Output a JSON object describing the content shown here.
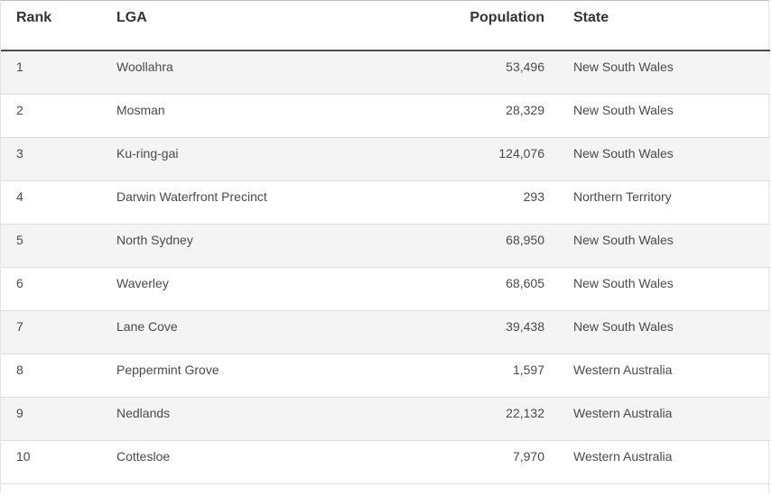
{
  "table": {
    "columns": [
      "Rank",
      "LGA",
      "Population",
      "State"
    ],
    "rows": [
      {
        "rank": "1",
        "lga": "Woollahra",
        "population": "53,496",
        "state": "New South Wales"
      },
      {
        "rank": "2",
        "lga": "Mosman",
        "population": "28,329",
        "state": "New South Wales"
      },
      {
        "rank": "3",
        "lga": "Ku-ring-gai",
        "population": "124,076",
        "state": "New South Wales"
      },
      {
        "rank": "4",
        "lga": "Darwin Waterfront Precinct",
        "population": "293",
        "state": "Northern Territory"
      },
      {
        "rank": "5",
        "lga": "North Sydney",
        "population": "68,950",
        "state": "New South Wales"
      },
      {
        "rank": "6",
        "lga": "Waverley",
        "population": "68,605",
        "state": "New South Wales"
      },
      {
        "rank": "7",
        "lga": "Lane Cove",
        "population": "39,438",
        "state": "New South Wales"
      },
      {
        "rank": "8",
        "lga": "Peppermint Grove",
        "population": "1,597",
        "state": "Western Australia"
      },
      {
        "rank": "9",
        "lga": "Nedlands",
        "population": "22,132",
        "state": "Western Australia"
      },
      {
        "rank": "10",
        "lga": "Cottesloe",
        "population": "7,970",
        "state": "Western Australia"
      }
    ]
  }
}
